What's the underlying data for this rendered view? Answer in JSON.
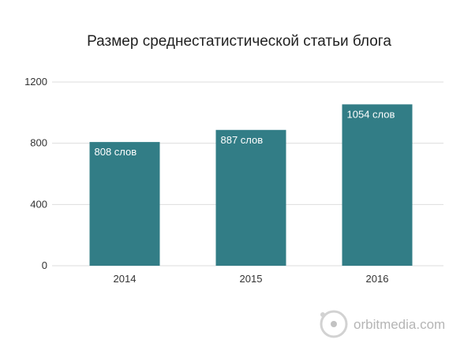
{
  "chart_data": {
    "type": "bar",
    "title": "Размер среднестатистической статьи блога",
    "categories": [
      "2014",
      "2015",
      "2016"
    ],
    "values": [
      808,
      887,
      1054
    ],
    "data_labels": [
      "808 слов",
      "887 слов",
      "1054 слов"
    ],
    "yticks": [
      "0",
      "400",
      "800",
      "1200"
    ],
    "ylim": [
      0,
      1200
    ],
    "xlabel": "",
    "ylabel": "",
    "grid": true,
    "bar_color": "#327d86"
  },
  "watermark": {
    "text": "orbitmedia.com",
    "icon": "orbit-logo-icon"
  }
}
